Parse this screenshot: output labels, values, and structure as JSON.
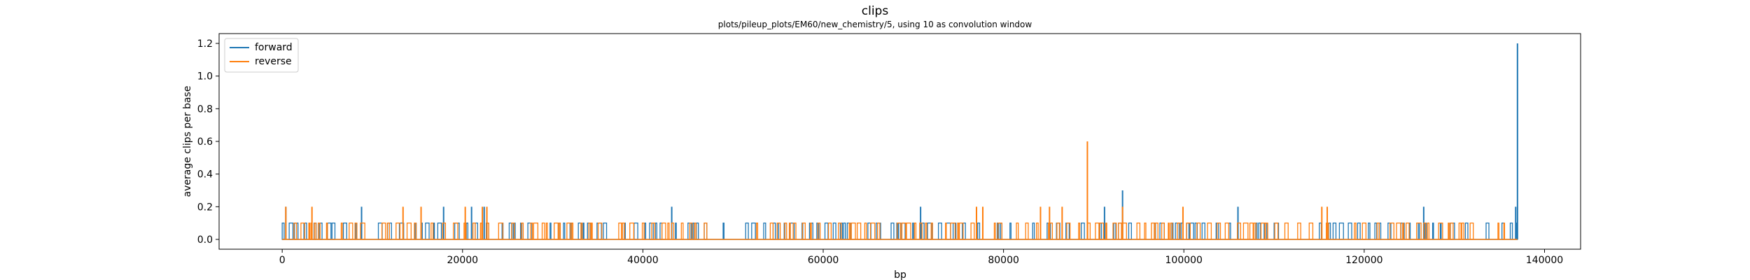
{
  "chart_data": {
    "type": "line",
    "title": "clips",
    "subtitle": "plots/pileup_plots/EM60/new_chemistry/5, using 10 as convolution window",
    "xlabel": "bp",
    "ylabel": "average clips per base",
    "xlim": [
      -7000,
      144000
    ],
    "ylim": [
      -0.06,
      1.26
    ],
    "xticks": [
      {
        "value": 0,
        "label": "0"
      },
      {
        "value": 20000,
        "label": "20000"
      },
      {
        "value": 40000,
        "label": "40000"
      },
      {
        "value": 60000,
        "label": "60000"
      },
      {
        "value": 80000,
        "label": "80000"
      },
      {
        "value": 100000,
        "label": "100000"
      },
      {
        "value": 120000,
        "label": "120000"
      },
      {
        "value": 140000,
        "label": "140000"
      }
    ],
    "yticks": [
      {
        "value": 0.0,
        "label": "0.0"
      },
      {
        "value": 0.2,
        "label": "0.2"
      },
      {
        "value": 0.4,
        "label": "0.4"
      },
      {
        "value": 0.6,
        "label": "0.6"
      },
      {
        "value": 0.8,
        "label": "0.8"
      },
      {
        "value": 1.0,
        "label": "1.0"
      },
      {
        "value": 1.2,
        "label": "1.2"
      }
    ],
    "grid": false,
    "legend_position": "upper-left",
    "series": [
      {
        "name": "forward",
        "color": "#1f77b4",
        "x_range": [
          0,
          137000
        ],
        "baseline": 0.0,
        "spikes": [
          {
            "x": 400,
            "y": 0.2
          },
          {
            "x": 8800,
            "y": 0.2
          },
          {
            "x": 17900,
            "y": 0.2
          },
          {
            "x": 21000,
            "y": 0.2
          },
          {
            "x": 22400,
            "y": 0.2
          },
          {
            "x": 43200,
            "y": 0.2
          },
          {
            "x": 70800,
            "y": 0.2
          },
          {
            "x": 91200,
            "y": 0.2
          },
          {
            "x": 93200,
            "y": 0.3
          },
          {
            "x": 106000,
            "y": 0.2
          },
          {
            "x": 126600,
            "y": 0.2
          },
          {
            "x": 136800,
            "y": 0.2
          },
          {
            "x": 137000,
            "y": 1.2
          }
        ],
        "dense_segments": [
          {
            "start": 0,
            "end": 22900,
            "y": 0.1
          },
          {
            "start": 23300,
            "end": 44600,
            "y": 0.1
          },
          {
            "start": 45000,
            "end": 47100,
            "y": 0.1
          },
          {
            "start": 48900,
            "end": 50100,
            "y": 0.1
          },
          {
            "start": 51400,
            "end": 78900,
            "y": 0.1
          },
          {
            "start": 79300,
            "end": 99900,
            "y": 0.1
          },
          {
            "start": 100300,
            "end": 135800,
            "y": 0.1
          },
          {
            "start": 136200,
            "end": 137000,
            "y": 0.1
          }
        ]
      },
      {
        "name": "reverse",
        "color": "#ff7f0e",
        "x_range": [
          0,
          137000
        ],
        "baseline": 0.0,
        "spikes": [
          {
            "x": 400,
            "y": 0.2
          },
          {
            "x": 3300,
            "y": 0.2
          },
          {
            "x": 13400,
            "y": 0.2
          },
          {
            "x": 15400,
            "y": 0.2
          },
          {
            "x": 20300,
            "y": 0.2
          },
          {
            "x": 22200,
            "y": 0.2
          },
          {
            "x": 22700,
            "y": 0.2
          },
          {
            "x": 77000,
            "y": 0.2
          },
          {
            "x": 77700,
            "y": 0.2
          },
          {
            "x": 84100,
            "y": 0.2
          },
          {
            "x": 85100,
            "y": 0.2
          },
          {
            "x": 86500,
            "y": 0.2
          },
          {
            "x": 89300,
            "y": 0.6
          },
          {
            "x": 93200,
            "y": 0.2
          },
          {
            "x": 99900,
            "y": 0.2
          },
          {
            "x": 115300,
            "y": 0.2
          },
          {
            "x": 115900,
            "y": 0.2
          }
        ],
        "dense_segments": [
          {
            "start": 0,
            "end": 22900,
            "y": 0.1
          },
          {
            "start": 24000,
            "end": 44600,
            "y": 0.1
          },
          {
            "start": 45200,
            "end": 47100,
            "y": 0.1
          },
          {
            "start": 48300,
            "end": 50100,
            "y": 0.1
          },
          {
            "start": 51400,
            "end": 135500,
            "y": 0.1
          }
        ]
      }
    ]
  }
}
